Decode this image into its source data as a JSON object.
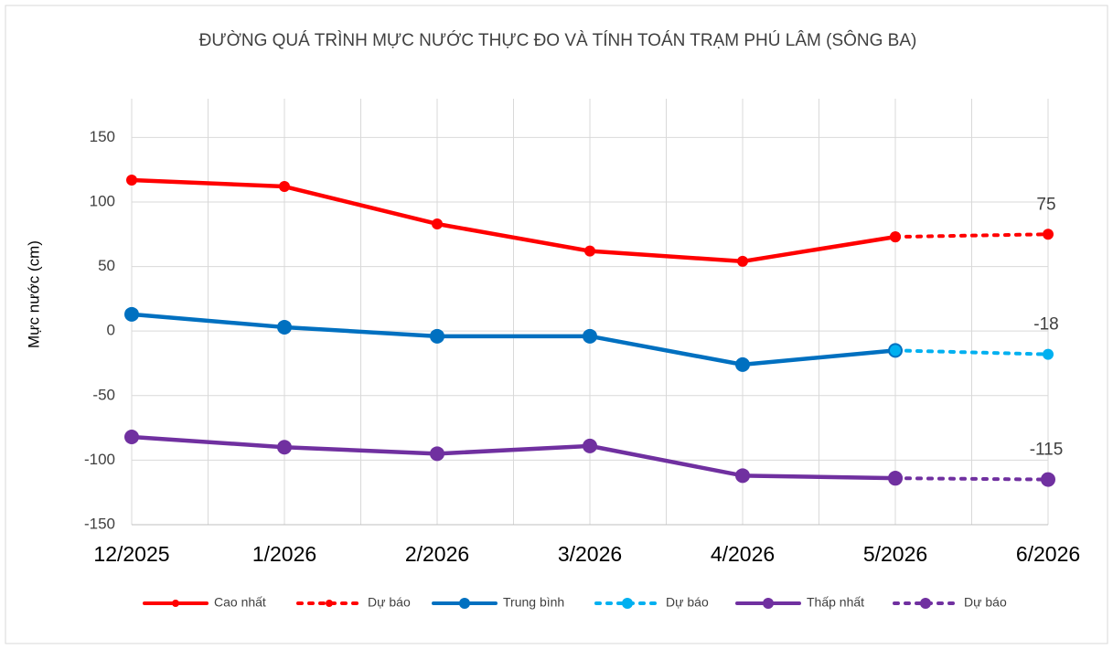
{
  "chart_data": {
    "type": "line",
    "title": "ĐƯỜNG QUÁ TRÌNH MỰC NƯỚC THỰC ĐO VÀ TÍNH TOÁN TRẠM PHÚ LÂM (SÔNG BA)",
    "y_label": "Mực nước (cm)",
    "categories": [
      "12/2025",
      "1/2026",
      "2/2026",
      "3/2026",
      "4/2026",
      "5/2026",
      "6/2026"
    ],
    "series": [
      {
        "name": "Cao nhất",
        "color": "#ff0000",
        "line_style": "solid",
        "values": [
          117,
          112,
          83,
          62,
          54,
          73,
          null
        ]
      },
      {
        "name": "Dự báo",
        "color": "#ff0000",
        "line_style": "dotted",
        "values": [
          null,
          null,
          null,
          null,
          null,
          73,
          75
        ]
      },
      {
        "name": "Trung bình",
        "color": "#0070c0",
        "line_style": "solid",
        "values": [
          13,
          3,
          -4,
          -4,
          -26,
          -15,
          null
        ]
      },
      {
        "name": "Dự báo",
        "color": "#00b0f0",
        "line_style": "dotted",
        "values": [
          null,
          null,
          null,
          null,
          null,
          -15,
          -18
        ]
      },
      {
        "name": "Thấp nhất",
        "color": "#7030a0",
        "line_style": "solid",
        "values": [
          -82,
          -90,
          -95,
          -89,
          -112,
          -114,
          null
        ]
      },
      {
        "name": "Dự báo",
        "color": "#7030a0",
        "line_style": "dotted",
        "values": [
          null,
          null,
          null,
          null,
          null,
          -114,
          -115
        ]
      }
    ],
    "ylim": [
      -150,
      180
    ],
    "yticks": [
      -150,
      -100,
      -50,
      0,
      50,
      100,
      150
    ],
    "grid": true,
    "legend": "bottom"
  }
}
